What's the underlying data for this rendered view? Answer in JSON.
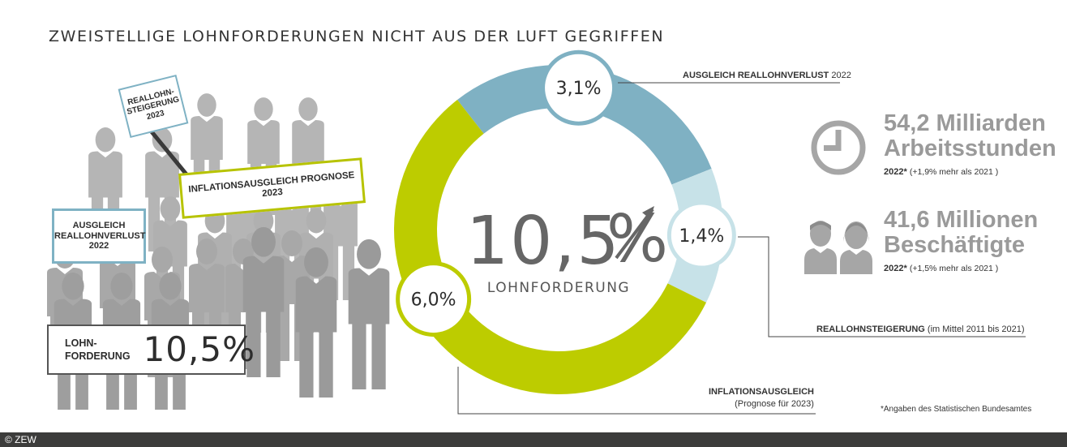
{
  "title": "ZWEISTELLIGE LOHNFORDERUNGEN NICHT AUS DER LUFT GEGRIFFEN",
  "colors": {
    "blue": "#7fb1c3",
    "light_blue": "#c7e2e8",
    "green": "#bdcc00",
    "gray_people": "#a6a6a6",
    "gray_text": "#9a9a9a"
  },
  "placards": {
    "reallohn_line1": "REALLOHN-",
    "reallohn_line2": "STEIGERUNG",
    "reallohn_line3": "2023",
    "inflation": "INFLATIONSAUSGLEICH PROGNOSE 2023",
    "ausgleich_line1": "AUSGLEICH",
    "ausgleich_line2": "REALLOHNVERLUST",
    "ausgleich_line3": "2022",
    "lohn_line1": "LOHN-",
    "lohn_line2": "FORDERUNG",
    "lohn_value": "10,5%"
  },
  "chart_data": {
    "type": "pie",
    "title": "LOHNFORDERUNG",
    "total_label": "10,5%",
    "total": 10.5,
    "slices": [
      {
        "label": "AUSGLEICH REALLOHNVERLUST 2022",
        "value": 3.1,
        "value_label": "3,1%",
        "color": "#7fb1c3"
      },
      {
        "label": "REALLOHNSTEIGERUNG (im Mittel 2011 bis 2021)",
        "value": 1.4,
        "value_label": "1,4%",
        "color": "#c7e2e8"
      },
      {
        "label": "INFLATIONSAUSGLEICH (Prognose für 2023)",
        "value": 6.0,
        "value_label": "6,0%",
        "color": "#bdcc00"
      }
    ]
  },
  "center": {
    "value": "10,5",
    "pct": "%",
    "label": "LOHNFORDERUNG"
  },
  "callouts": {
    "ausgleich_bold": "AUSGLEICH REALLOHNVERLUST",
    "ausgleich_year": " 2022",
    "reallohn_bold": "REALLOHNSTEIGERUNG",
    "reallohn_normal": " (im Mittel 2011 bis 2021)",
    "inflation_bold": "INFLATIONSAUSGLEICH",
    "inflation_normal": "(Prognose für 2023)"
  },
  "stats": [
    {
      "line1": "54,2 Milliarden",
      "line2": "Arbeitsstunden",
      "year": "2022*",
      "change": "(+1,9% mehr als 2021 )",
      "icon": "clock-icon"
    },
    {
      "line1": "41,6 Millionen",
      "line2": "Beschäftigte",
      "year": "2022*",
      "change": "(+1,5% mehr als 2021 )",
      "icon": "people-icon"
    }
  ],
  "footnote": "*Angaben des Statistischen Bundesamtes",
  "copyright": "© ZEW"
}
